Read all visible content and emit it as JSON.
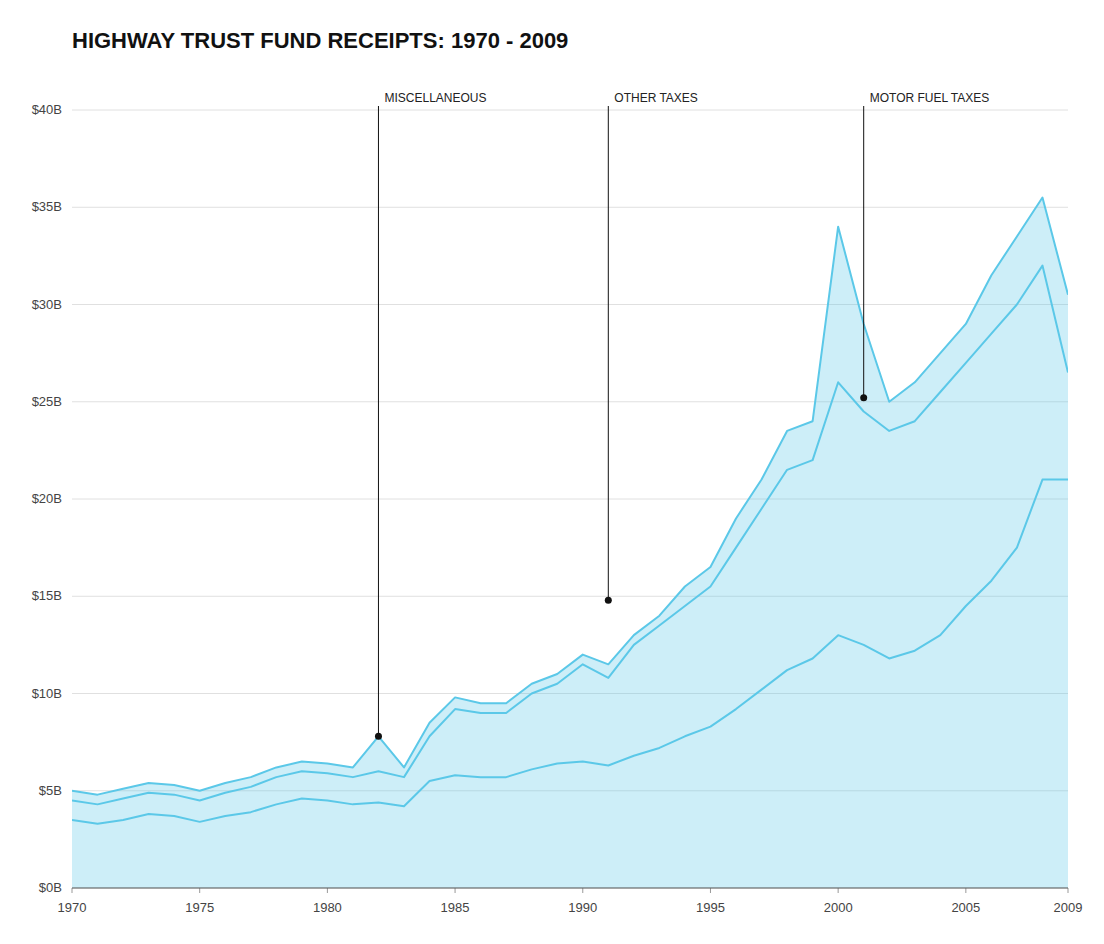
{
  "chart_data": {
    "type": "line",
    "title": "HIGHWAY TRUST FUND RECEIPTS: 1970 - 2009",
    "x": [
      1970,
      1971,
      1972,
      1973,
      1974,
      1975,
      1976,
      1977,
      1978,
      1979,
      1980,
      1981,
      1982,
      1983,
      1984,
      1985,
      1986,
      1987,
      1988,
      1989,
      1990,
      1991,
      1992,
      1993,
      1994,
      1995,
      1996,
      1997,
      1998,
      1999,
      2000,
      2001,
      2002,
      2003,
      2004,
      2005,
      2006,
      2007,
      2008,
      2009
    ],
    "series": [
      {
        "type": "line",
        "color": "#5bc8e8",
        "values": [
          3.5,
          3.3,
          3.5,
          3.8,
          3.7,
          3.4,
          3.7,
          3.9,
          4.3,
          4.6,
          4.5,
          4.3,
          4.4,
          4.2,
          5.5,
          5.8,
          5.7,
          5.7,
          6.1,
          6.4,
          6.5,
          6.3,
          6.8,
          7.2,
          7.8,
          8.3,
          9.2,
          10.2,
          11.2,
          11.8,
          13.0,
          12.5,
          11.8,
          12.2,
          13.0,
          14.5,
          15.8,
          17.5,
          21.0,
          21.0
        ]
      },
      {
        "type": "line",
        "color": "#5bc8e8",
        "values": [
          4.5,
          4.3,
          4.6,
          4.9,
          4.8,
          4.5,
          4.9,
          5.2,
          5.7,
          6.0,
          5.9,
          5.7,
          6.0,
          5.7,
          7.8,
          9.2,
          9.0,
          9.0,
          10.0,
          10.5,
          11.5,
          10.8,
          12.5,
          13.5,
          14.5,
          15.5,
          17.5,
          19.5,
          21.5,
          22.0,
          26.0,
          24.5,
          23.5,
          24.0,
          25.5,
          27.0,
          28.5,
          30.0,
          32.0,
          26.5
        ]
      },
      {
        "type": "area",
        "color": "#5bc8e8",
        "values": [
          5.0,
          4.8,
          5.1,
          5.4,
          5.3,
          5.0,
          5.4,
          5.7,
          6.2,
          6.5,
          6.4,
          6.2,
          7.8,
          6.2,
          8.5,
          9.8,
          9.5,
          9.5,
          10.5,
          11.0,
          12.0,
          11.5,
          13.0,
          14.0,
          15.5,
          16.5,
          19.0,
          21.0,
          23.5,
          24.0,
          34.0,
          29.0,
          25.0,
          26.0,
          27.5,
          29.0,
          31.5,
          33.5,
          35.5,
          30.5
        ]
      }
    ],
    "annotations": [
      {
        "label": "MISCELLANEOUS",
        "x": 1982,
        "y": 7.8
      },
      {
        "label": "OTHER TAXES",
        "x": 1991,
        "y": 14.8
      },
      {
        "label": "MOTOR FUEL TAXES",
        "x": 2001,
        "y": 25.2
      }
    ],
    "xlim": [
      1970,
      2009
    ],
    "xticks": [
      1970,
      1975,
      1980,
      1985,
      1990,
      1995,
      2000,
      2005,
      2009
    ],
    "ylim": [
      0,
      40
    ],
    "yticks": [
      {
        "value": 0,
        "label": "$0B"
      },
      {
        "value": 5,
        "label": "$5B"
      },
      {
        "value": 10,
        "label": "$10B"
      },
      {
        "value": 15,
        "label": "$15B"
      },
      {
        "value": 20,
        "label": "$20B"
      },
      {
        "value": 25,
        "label": "$25B"
      },
      {
        "value": 30,
        "label": "$30B"
      },
      {
        "value": 35,
        "label": "$35B"
      },
      {
        "value": 40,
        "label": "$40B"
      }
    ],
    "grid": true
  }
}
